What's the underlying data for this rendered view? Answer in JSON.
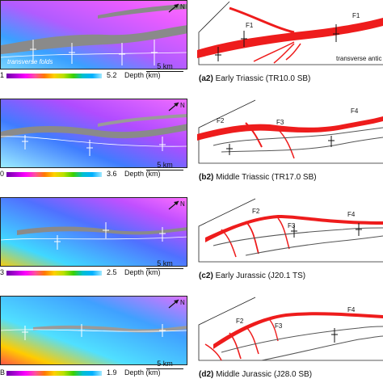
{
  "north_label": "N",
  "depth_label": "Depth (km)",
  "scale_label": "5 km",
  "panels": [
    {
      "min": "1",
      "max": "5.2",
      "caption_id": "(a2)",
      "caption_text": "Early Triassic (TR10.0 SB)",
      "map_annotation": "transverse folds",
      "interp_annotation": "transverse antic",
      "faults": [
        "F1",
        "F1"
      ]
    },
    {
      "min": "0",
      "max": "3.6",
      "caption_id": "(b2)",
      "caption_text": "Middle Triassic (TR17.0 SB)",
      "faults": [
        "F2",
        "F3",
        "F4"
      ]
    },
    {
      "min": "3",
      "max": "2.5",
      "caption_id": "(c2)",
      "caption_text": "Early Jurassic (J20.1 TS)",
      "faults": [
        "F2",
        "F3",
        "F4"
      ]
    },
    {
      "min": "B",
      "max": "1.9",
      "caption_id": "(d2)",
      "caption_text": "Middle Jurassic (J28.0 SB)",
      "faults": [
        "F2",
        "F3",
        "F4"
      ]
    }
  ],
  "colors": {
    "fault": "#ee1c1c",
    "fold_axis": "#555555",
    "map_gray": "#8a8a8a"
  }
}
